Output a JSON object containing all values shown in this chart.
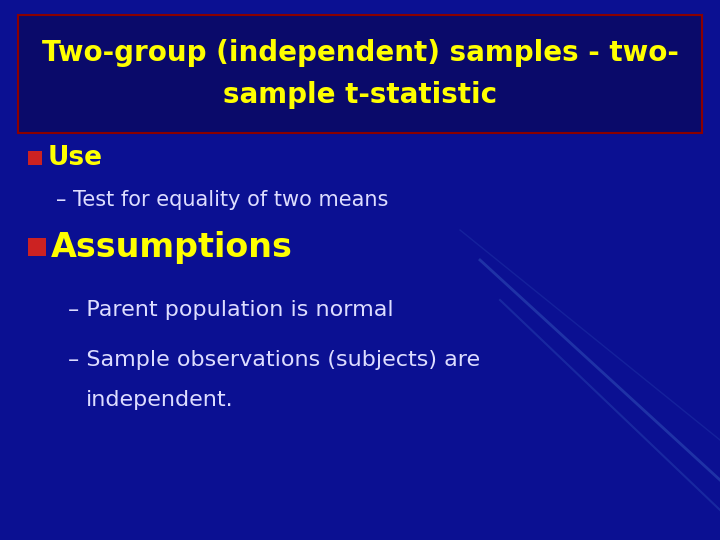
{
  "title_line1": "Two-group (independent) samples - two-",
  "title_line2": "sample t-statistic",
  "bg_color": "#0a0a8a",
  "title_box_bg": "#0a0a6a",
  "title_box_border": "#8B0000",
  "title_text_color": "#FFFF00",
  "bullet_color": "#CC2222",
  "body_text_color": "#FFFF00",
  "sub_text_color": "#DDDDFF",
  "bullet1_text": "Use",
  "sub1_text": "– Test for equality of two means",
  "bullet2_text": "Assumptions",
  "sub2_text1": "– Parent population is normal",
  "sub2_text2": "– Sample observations (subjects) are",
  "sub2_text3": "   independent.",
  "title_fontsize": 20,
  "bullet1_fontsize": 19,
  "sub_fontsize": 15,
  "bullet2_fontsize": 24,
  "diag_line_color": "#3355bb"
}
